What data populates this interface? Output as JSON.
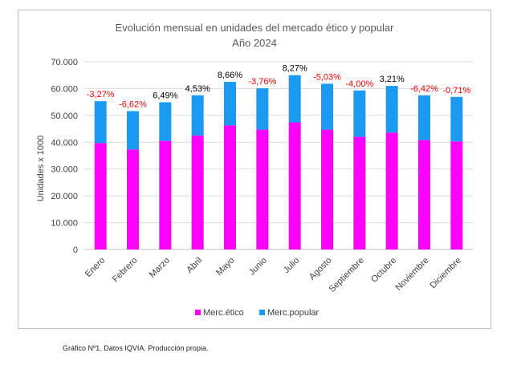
{
  "chart_data": {
    "type": "bar",
    "stacked": true,
    "title": "Evolución mensual en unidades del mercado ético y popular",
    "subtitle": "Año 2024",
    "xlabel": "",
    "ylabel": "Unidades x 1000",
    "ylim": [
      0,
      70000
    ],
    "yticks": [
      0,
      10000,
      20000,
      30000,
      40000,
      50000,
      60000,
      70000
    ],
    "ytick_labels": [
      "0",
      "10.000",
      "20.000",
      "30.000",
      "40.000",
      "50.000",
      "60.000",
      "70.000"
    ],
    "grid": true,
    "legend_position": "bottom",
    "categories": [
      "Enero",
      "Febrero",
      "Marzo",
      "Abril",
      "Mayo",
      "Junio",
      "Julio",
      "Agosto",
      "Septiembre",
      "Octubre",
      "Noviembre",
      "Diciembre"
    ],
    "series": [
      {
        "name": "Merc.ético",
        "color": "#ff00ff",
        "values": [
          39700,
          37300,
          40500,
          42500,
          46300,
          44700,
          47400,
          44700,
          42000,
          43600,
          40800,
          40300
        ]
      },
      {
        "name": "Merc.popular",
        "color": "#1a9af0",
        "values": [
          15600,
          14300,
          14400,
          15000,
          16200,
          15400,
          17600,
          17100,
          17300,
          17400,
          16700,
          16600
        ]
      }
    ],
    "annotations": [
      {
        "text": "-3,27%",
        "color": "#ff0000"
      },
      {
        "text": "-6,62%",
        "color": "#ff0000"
      },
      {
        "text": "6,49%",
        "color": "#000000"
      },
      {
        "text": "4,53%",
        "color": "#000000"
      },
      {
        "text": "8,66%",
        "color": "#000000"
      },
      {
        "text": "-3,76%",
        "color": "#ff0000"
      },
      {
        "text": "8,27%",
        "color": "#000000"
      },
      {
        "text": "-5,03%",
        "color": "#ff0000"
      },
      {
        "text": "-4,00%",
        "color": "#ff0000"
      },
      {
        "text": "3,21%",
        "color": "#000000"
      },
      {
        "text": "-6,42%",
        "color": "#ff0000"
      },
      {
        "text": "-0,71%",
        "color": "#ff0000"
      }
    ]
  },
  "caption": "Gráfico Nº1. Datos IQVIA. Producción propia."
}
